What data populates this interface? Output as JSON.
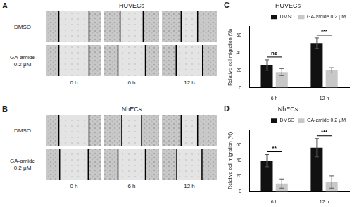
{
  "panels": [
    {
      "label": "A",
      "type": "image_grid",
      "title": "HUVECs",
      "rows": [
        "DMSO",
        "GA-amide 0.2 μM"
      ],
      "columns": [
        "0 h",
        "6 h",
        "12 h"
      ]
    },
    {
      "label": "B",
      "type": "image_grid",
      "title": "NhECs",
      "rows": [
        "DMSO",
        "GA-amide 0.2 μM"
      ],
      "columns": [
        "0 h",
        "6 h",
        "12 h"
      ]
    }
  ],
  "chart_data": [
    {
      "label": "C",
      "type": "bar",
      "title": "HUVECs",
      "y_label": "Relative cell migration (%)",
      "categories": [
        "6 h",
        "12 h"
      ],
      "series": [
        {
          "name": "DMSO",
          "color": "#111111",
          "values": [
            26,
            51
          ],
          "errors": [
            6,
            6
          ]
        },
        {
          "name": "GA-amide 0.2 μM",
          "color": "#c8c8c8",
          "values": [
            18,
            20
          ],
          "errors": [
            4,
            3
          ]
        }
      ],
      "ylim": [
        0,
        70
      ],
      "yticks": [
        0,
        20,
        40,
        60
      ],
      "grid": false,
      "legend": "top-right",
      "annotations": [
        {
          "category": "6 h",
          "text": "ns"
        },
        {
          "category": "12 h",
          "text": "***"
        }
      ]
    },
    {
      "label": "D",
      "type": "bar",
      "title": "NhECs",
      "y_label": "Relative cell migration (%)",
      "categories": [
        "6 h",
        "12 h"
      ],
      "series": [
        {
          "name": "DMSO",
          "color": "#111111",
          "values": [
            40,
            57
          ],
          "errors": [
            8,
            12
          ]
        },
        {
          "name": "GA-amide 0.2 μM",
          "color": "#c8c8c8",
          "values": [
            10,
            12
          ],
          "errors": [
            6,
            8
          ]
        }
      ],
      "ylim": [
        0,
        80
      ],
      "yticks": [
        0,
        20,
        40,
        60
      ],
      "grid": false,
      "legend": "top-right",
      "annotations": [
        {
          "category": "6 h",
          "text": "**"
        },
        {
          "category": "12 h",
          "text": "***"
        }
      ]
    }
  ]
}
